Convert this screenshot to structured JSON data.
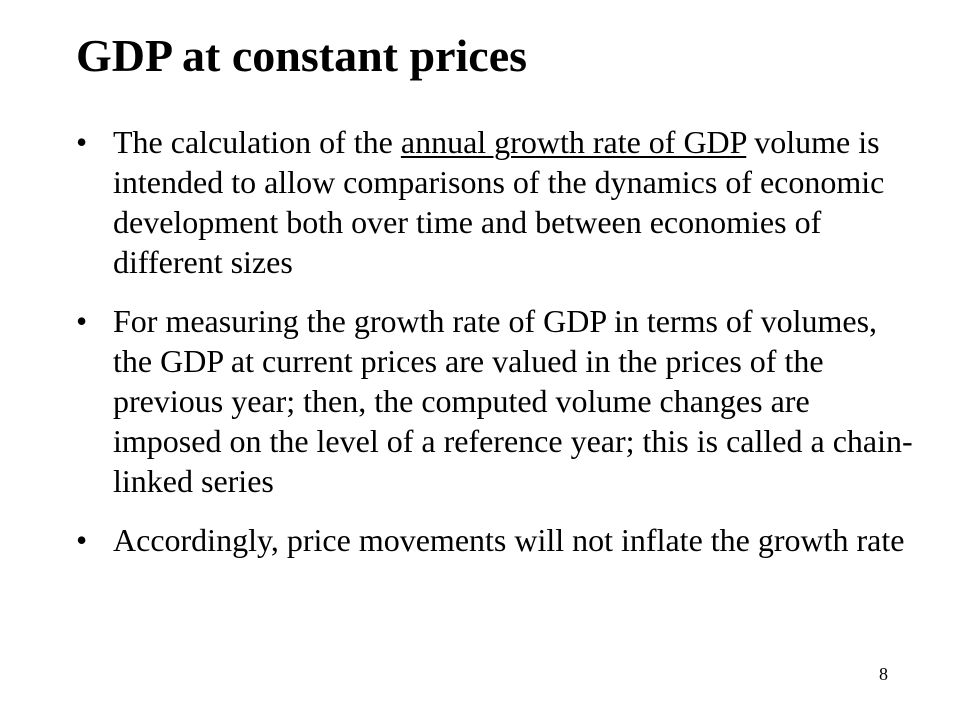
{
  "slide": {
    "title": "GDP at constant prices",
    "bullet_glyph": "•",
    "bullets": [
      {
        "before": "The calculation of the ",
        "underlined": "annual growth rate of GDP",
        "after": " volume is intended to allow comparisons of the dynamics of economic development both over time and between economies of different sizes"
      },
      {
        "text": "For measuring the growth rate of GDP in terms of volumes, the GDP at current prices are valued in the prices of the previous year; then, the computed volume changes are imposed on the level of a reference year; this is called a chain-linked series"
      },
      {
        "text": "Accordingly, price movements will not inflate the growth rate"
      }
    ],
    "page_number": "8"
  }
}
